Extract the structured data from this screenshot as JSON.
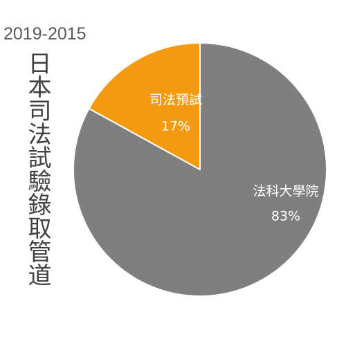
{
  "chart_data": {
    "type": "pie",
    "title": "2019-2015",
    "subtitle": "日本司法試驗錄取管道",
    "categories": [
      "法科大學院",
      "司法預試"
    ],
    "values": [
      83,
      17
    ],
    "data_labels": [
      "83%",
      "17%"
    ],
    "colors": [
      "#7f7f7f",
      "#f39a0e"
    ],
    "start": "12 o'clock",
    "direction": "clockwise",
    "legend": "none",
    "label_color": "#ffffff"
  }
}
